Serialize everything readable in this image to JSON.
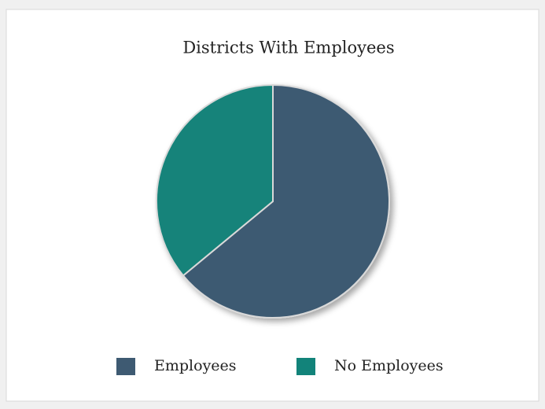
{
  "chart_data": {
    "type": "pie",
    "title": "Districts With Employees",
    "categories": [
      "Employees",
      "No Employees"
    ],
    "values": [
      64,
      36
    ],
    "colors": [
      "#3e5a72",
      "#12837a"
    ],
    "legend": "bottom"
  }
}
